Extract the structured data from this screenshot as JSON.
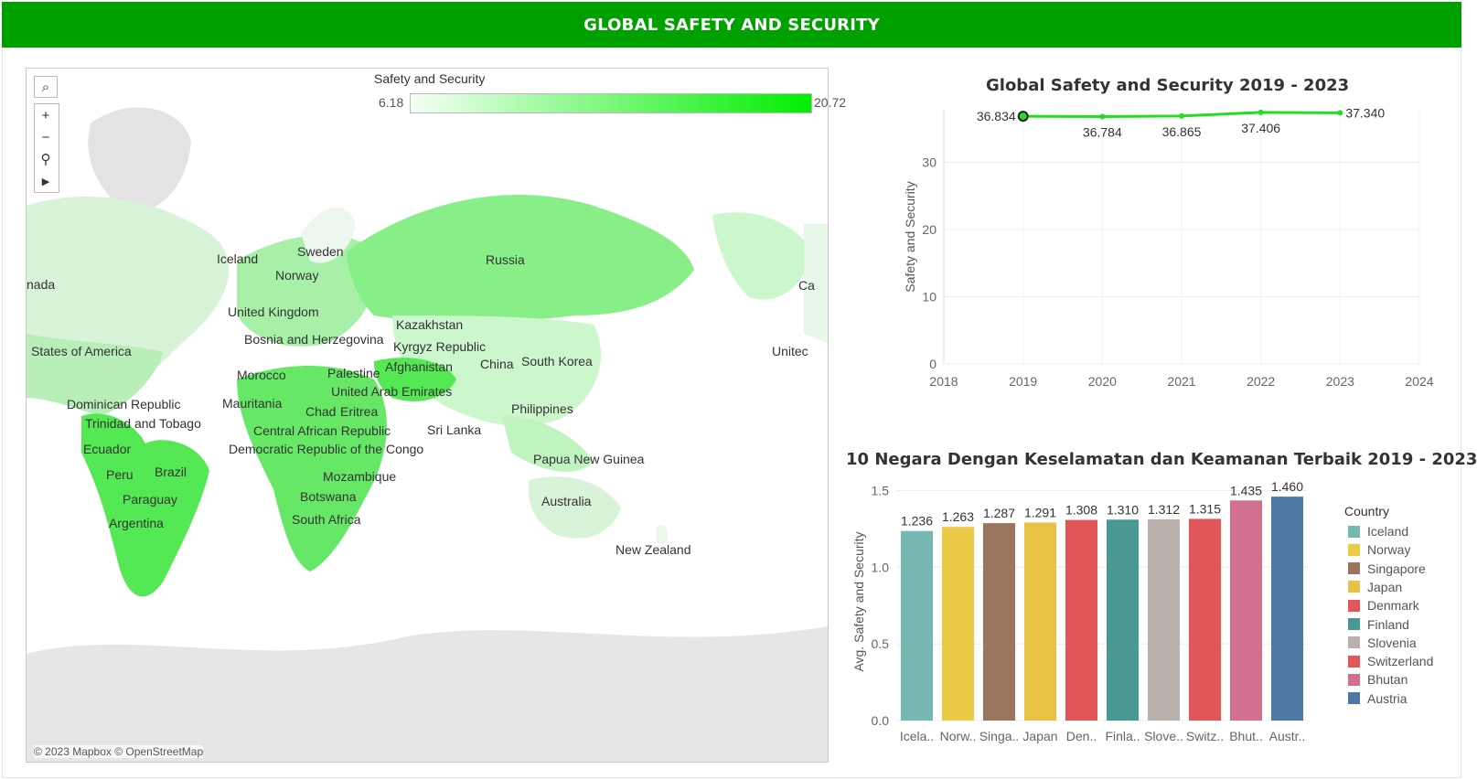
{
  "header": {
    "title": "GLOBAL SAFETY AND SECURITY"
  },
  "map": {
    "legend_title": "Safety and Security",
    "legend_min": "6.18",
    "legend_max": "20.72",
    "color_low": "#f4fff4",
    "color_high": "#00ee00",
    "tools": {
      "search_icon": "magnifier",
      "zoom_in": "+",
      "zoom_out": "−",
      "pin_icon": "pin",
      "play_icon": "▶"
    },
    "attribution": "© 2023 Mapbox © OpenStreetMap",
    "labels": [
      "Iceland",
      "Sweden",
      "Norway",
      "Russia",
      "nada",
      "United Kingdom",
      "Kazakhstan",
      "Bosnia and Herzegovina",
      "Kyrgyz Republic",
      "States of America",
      "Morocco",
      "Palestine",
      "Afghanistan",
      "China",
      "South Korea",
      "United Arab Emirates",
      "Dominican Republic",
      "Mauritania",
      "Chad",
      "Eritrea",
      "Philippines",
      "Trinidad and Tobago",
      "Central African Republic",
      "Sri Lanka",
      "Ecuador",
      "Democratic Republic of the Congo",
      "Papua New Guinea",
      "Brazil",
      "Peru",
      "Mozambique",
      "Botswana",
      "Paraguay",
      "Australia",
      "South Africa",
      "Argentina",
      "New Zealand",
      "Ca",
      "Unitec"
    ]
  },
  "line_chart": {
    "title": "Global Safety and Security 2019 - 2023",
    "chart_data": {
      "type": "line",
      "x": [
        2019,
        2020,
        2021,
        2022,
        2023
      ],
      "values": [
        36.834,
        36.784,
        36.865,
        37.406,
        37.34
      ],
      "value_labels": [
        "36.834",
        "36.784",
        "36.865",
        "37.406",
        "37.340"
      ],
      "ylabel": "Safety and Security",
      "xlabel": "",
      "x_ticks": [
        "2018",
        "2019",
        "2020",
        "2021",
        "2022",
        "2023",
        "2024"
      ],
      "y_ticks": [
        "0",
        "10",
        "20",
        "30"
      ],
      "xlim": [
        2018,
        2024
      ],
      "ylim": [
        0,
        37.8
      ],
      "grid": true,
      "color": "#22dd22"
    }
  },
  "bar_chart": {
    "title": "10 Negara Dengan Keselamatan dan Keamanan Terbaik 2019 - 2023",
    "legend_title": "Country",
    "chart_data": {
      "type": "bar",
      "categories": [
        "Iceland",
        "Norway",
        "Singapore",
        "Japan",
        "Denmark",
        "Finland",
        "Slovenia",
        "Switzerland",
        "Bhutan",
        "Austria"
      ],
      "tick_labels": [
        "Icela..",
        "Norw..",
        "Singa..",
        "Japan",
        "Den..",
        "Finla..",
        "Slove..",
        "Switz..",
        "Bhut..",
        "Austr.."
      ],
      "values": [
        1.236,
        1.263,
        1.287,
        1.291,
        1.308,
        1.31,
        1.312,
        1.315,
        1.435,
        1.46
      ],
      "value_labels": [
        "1.236",
        "1.263",
        "1.287",
        "1.291",
        "1.308",
        "1.310",
        "1.312",
        "1.315",
        "1.435",
        "1.460"
      ],
      "colors": [
        "#76b7b2",
        "#edc948",
        "#9c755f",
        "#e8c244",
        "#e15759",
        "#4a9893",
        "#bab0ac",
        "#e15759",
        "#d4708f",
        "#4e79a7"
      ],
      "ylabel": "Avg. Safety and Security",
      "xlabel": "",
      "y_ticks": [
        "0.0",
        "0.5",
        "1.0",
        "1.5"
      ],
      "ylim": [
        0,
        1.55
      ],
      "grid": true,
      "legend_position": "right"
    }
  }
}
